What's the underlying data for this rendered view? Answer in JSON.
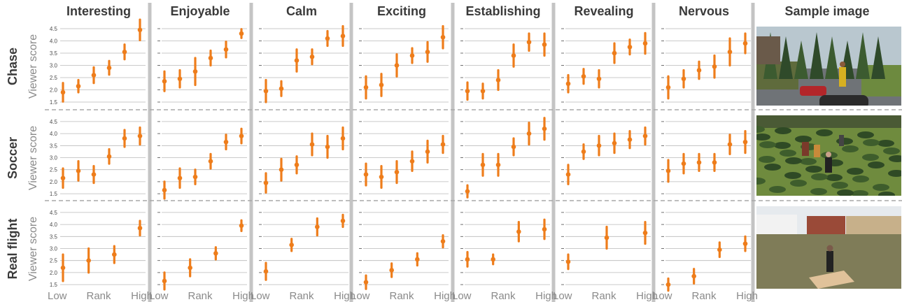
{
  "colors": {
    "marker": "#ee7d1b",
    "grid": "#b8b8b8",
    "column_divider": "#c4c4c4",
    "row_divider": "#a8a8a8",
    "tick_text": "#4d4d4d",
    "axis_text": "#8a8a8a",
    "title_text": "#3a3a3a"
  },
  "header": {
    "columns": [
      "Interesting",
      "Enjoyable",
      "Calm",
      "Exciting",
      "Establishing",
      "Revealing",
      "Nervous"
    ],
    "sample_title": "Sample image"
  },
  "rows": [
    "Chase",
    "Soccer",
    "Real flight"
  ],
  "ylabel": "Viewer score",
  "xlabels": {
    "low": "Low",
    "mid": "Rank",
    "high": "High"
  },
  "chart_data": {
    "type": "errorbar-grid",
    "ylim": [
      1.3,
      4.7
    ],
    "yticks": [
      1.5,
      2.0,
      2.5,
      3.0,
      3.5,
      4.0,
      4.5
    ],
    "ytick_labels": [
      "1.5",
      "2.0",
      "2.5",
      "3.0",
      "3.5",
      "4.0",
      "4.5"
    ],
    "grid": true,
    "panels": {
      "Chase": {
        "x": [
          1,
          2,
          3,
          4,
          5,
          6,
          7
        ],
        "Interesting": {
          "mean": [
            1.9,
            2.15,
            2.6,
            2.9,
            3.55,
            4.45
          ],
          "x": [
            1,
            2,
            3,
            4,
            5,
            6
          ],
          "err": [
            0.38,
            0.25,
            0.32,
            0.28,
            0.3,
            0.42
          ]
        },
        "Enjoyable": {
          "mean": [
            2.35,
            2.45,
            2.75,
            3.3,
            3.65,
            4.3
          ],
          "x": [
            1,
            2,
            3,
            4,
            5,
            6
          ],
          "err": [
            0.4,
            0.35,
            0.55,
            0.3,
            0.32,
            0.18
          ]
        },
        "Calm": {
          "mean": [
            1.95,
            2.05,
            3.2,
            3.35,
            4.1,
            4.2
          ],
          "x": [
            1,
            2,
            3,
            4,
            5,
            6
          ],
          "err": [
            0.45,
            0.3,
            0.45,
            0.3,
            0.3,
            0.4
          ]
        },
        "Exciting": {
          "mean": [
            2.1,
            2.2,
            3.0,
            3.4,
            3.55,
            4.15
          ],
          "x": [
            1,
            2,
            3,
            4,
            5,
            6
          ],
          "err": [
            0.45,
            0.45,
            0.45,
            0.3,
            0.4,
            0.45
          ]
        },
        "Establishing": {
          "mean": [
            1.95,
            1.95,
            2.4,
            3.4,
            3.95,
            3.85
          ],
          "x": [
            1,
            2,
            3,
            4,
            5,
            6
          ],
          "err": [
            0.35,
            0.3,
            0.4,
            0.45,
            0.35,
            0.45
          ]
        },
        "Revealing": {
          "mean": [
            2.25,
            2.55,
            2.45,
            3.5,
            3.75,
            3.9
          ],
          "x": [
            1,
            2,
            3,
            4,
            5,
            6
          ],
          "err": [
            0.35,
            0.3,
            0.35,
            0.4,
            0.3,
            0.42
          ]
        },
        "Nervous": {
          "mean": [
            2.1,
            2.45,
            2.8,
            2.95,
            3.55,
            3.9
          ],
          "x": [
            1,
            2,
            3,
            4,
            5,
            6
          ],
          "err": [
            0.45,
            0.35,
            0.35,
            0.45,
            0.55,
            0.4
          ]
        }
      },
      "Soccer": {
        "Interesting": {
          "x": [
            1,
            2,
            3,
            4,
            5,
            6
          ],
          "mean": [
            2.15,
            2.45,
            2.3,
            3.05,
            3.8,
            3.9
          ],
          "err": [
            0.4,
            0.4,
            0.35,
            0.3,
            0.35,
            0.35
          ]
        },
        "Enjoyable": {
          "x": [
            1,
            2,
            3,
            4,
            5,
            6
          ],
          "mean": [
            1.65,
            2.15,
            2.2,
            2.85,
            3.65,
            3.9
          ],
          "err": [
            0.35,
            0.4,
            0.3,
            0.3,
            0.3,
            0.3
          ]
        },
        "Calm": {
          "x": [
            1,
            2,
            3,
            4,
            5,
            6
          ],
          "mean": [
            1.95,
            2.5,
            2.7,
            3.55,
            3.45,
            3.8
          ],
          "err": [
            0.4,
            0.45,
            0.35,
            0.45,
            0.45,
            0.45
          ]
        },
        "Exciting": {
          "x": [
            1,
            2,
            3,
            4,
            5,
            6
          ],
          "mean": [
            2.3,
            2.2,
            2.4,
            2.85,
            3.25,
            3.55
          ],
          "err": [
            0.45,
            0.45,
            0.45,
            0.4,
            0.45,
            0.35
          ]
        },
        "Establishing": {
          "x": [
            1,
            2,
            3,
            4,
            5,
            6
          ],
          "mean": [
            1.6,
            2.7,
            2.7,
            3.45,
            4.0,
            4.2
          ],
          "err": [
            0.25,
            0.45,
            0.45,
            0.35,
            0.45,
            0.45
          ]
        },
        "Revealing": {
          "x": [
            1,
            2,
            3,
            4,
            5,
            6
          ],
          "mean": [
            2.3,
            3.25,
            3.5,
            3.6,
            3.75,
            3.9
          ],
          "err": [
            0.4,
            0.3,
            0.4,
            0.4,
            0.35,
            0.35
          ]
        },
        "Nervous": {
          "x": [
            1,
            2,
            3,
            4,
            5,
            6
          ],
          "mean": [
            2.45,
            2.75,
            2.8,
            2.8,
            3.55,
            3.65
          ],
          "err": [
            0.45,
            0.4,
            0.35,
            0.35,
            0.4,
            0.45
          ]
        }
      },
      "Real flight": {
        "Interesting": {
          "x": [
            1,
            2,
            3,
            4
          ],
          "mean": [
            2.2,
            2.5,
            2.75,
            3.85
          ],
          "err": [
            0.55,
            0.5,
            0.35,
            0.3
          ]
        },
        "Enjoyable": {
          "x": [
            1,
            2,
            3,
            4
          ],
          "mean": [
            1.65,
            2.2,
            2.8,
            3.95
          ],
          "err": [
            0.35,
            0.35,
            0.25,
            0.22
          ]
        },
        "Calm": {
          "x": [
            1,
            2,
            3,
            4
          ],
          "mean": [
            2.05,
            3.15,
            3.9,
            4.15
          ],
          "err": [
            0.35,
            0.25,
            0.35,
            0.25
          ]
        },
        "Exciting": {
          "x": [
            1,
            2,
            3,
            4
          ],
          "mean": [
            1.6,
            2.1,
            2.55,
            3.3
          ],
          "err": [
            0.28,
            0.28,
            0.25,
            0.25
          ]
        },
        "Establishing": {
          "x": [
            1,
            2,
            3,
            4
          ],
          "mean": [
            2.55,
            2.55,
            3.7,
            3.8
          ],
          "err": [
            0.3,
            0.2,
            0.4,
            0.4
          ]
        },
        "Revealing": {
          "x": [
            1,
            2,
            3,
            4
          ],
          "mean": [
            2.45,
            3.45,
            3.65
          ],
          "err": [
            0.3,
            0.45,
            0.45
          ],
          "x_override": [
            1,
            2.5,
            4
          ]
        },
        "Nervous": {
          "x": [
            1,
            2,
            3,
            4
          ],
          "mean": [
            1.5,
            1.85,
            2.95,
            3.2
          ],
          "err": [
            0.25,
            0.3,
            0.3,
            0.3
          ]
        }
      }
    }
  },
  "sample_images": [
    {
      "row": "Chase",
      "scene": "chase"
    },
    {
      "row": "Soccer",
      "scene": "soccer"
    },
    {
      "row": "Real flight",
      "scene": "flight"
    }
  ]
}
